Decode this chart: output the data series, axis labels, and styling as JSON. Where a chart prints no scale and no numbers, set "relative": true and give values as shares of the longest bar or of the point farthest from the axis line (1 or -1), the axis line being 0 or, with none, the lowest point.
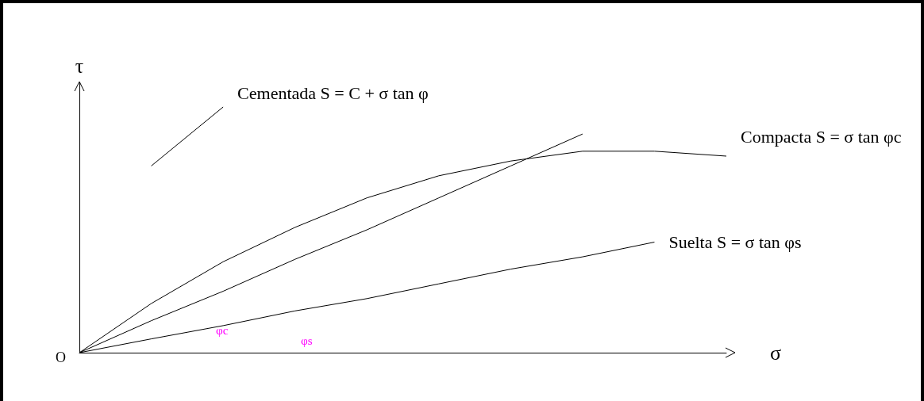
{
  "chart_data": {
    "type": "line",
    "relative": true,
    "xlabel": "σ",
    "ylabel": "τ",
    "categories": [
      null,
      null,
      null,
      null,
      null,
      null,
      null,
      null,
      null,
      null
    ],
    "series": [
      {
        "name": "Cementada S = C + σ tan φ",
        "color": "#000000",
        "values": [
          null,
          0.76,
          1.0,
          null,
          null,
          null,
          null,
          null,
          null,
          null
        ]
      },
      {
        "name": "Compacta S = σ tan φc",
        "color": "#000000",
        "values": [
          0,
          0.2,
          0.37,
          0.51,
          0.63,
          0.72,
          0.78,
          0.82,
          0.82,
          0.8
        ]
      },
      {
        "color": "#000000",
        "values": [
          0,
          0.13,
          0.25,
          0.38,
          0.5,
          0.63,
          0.76,
          0.89,
          null,
          null
        ]
      },
      {
        "name": "Suelta S = σ tan φs",
        "color": "#000000",
        "values": [
          0,
          0.056,
          0.11,
          0.17,
          0.22,
          0.28,
          0.34,
          0.39,
          0.45,
          null
        ]
      }
    ],
    "annotations": [
      "φc",
      "φs",
      "O"
    ],
    "legend": false,
    "grid": false,
    "marker": "none",
    "line_style": "solid"
  }
}
